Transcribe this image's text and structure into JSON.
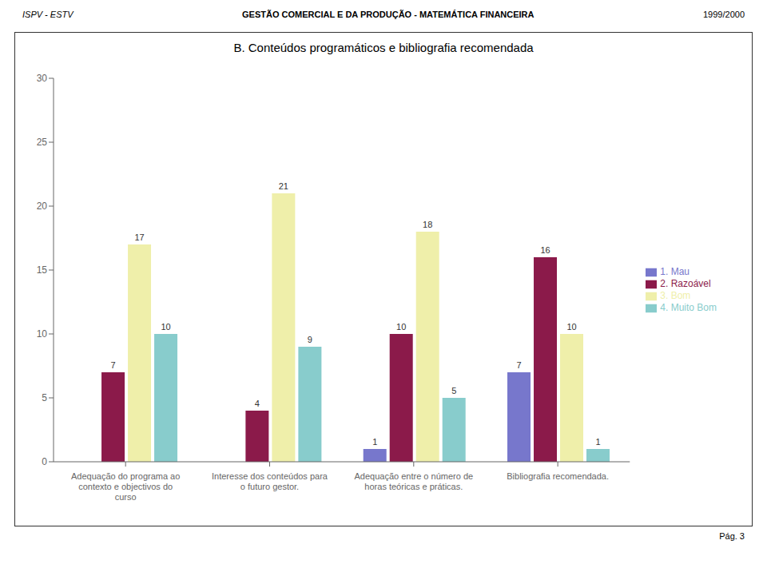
{
  "chart_data": {
    "type": "bar",
    "title": "B. Conteúdos programáticos e bibliografia recomendada",
    "annotations": [
      "ISPV - ESTV",
      "GESTÃO COMERCIAL E DA PRODUÇÃO - MATEMÁTICA FINANCEIRA",
      "1999/2000",
      "Pág. 3"
    ],
    "categories": [
      "Adequação do programa ao contexto e objectivos do curso",
      "Interesse dos conteúdos para o futuro gestor.",
      "Adequação entre o número de horas teóricas e práticas.",
      "Bibliografia recomendada."
    ],
    "series": [
      {
        "name": "1. Mau",
        "color": "#7777cc",
        "values": [
          0,
          0,
          1,
          7
        ]
      },
      {
        "name": "2. Razoável",
        "color": "#8b1a4a",
        "values": [
          7,
          4,
          10,
          16
        ]
      },
      {
        "name": "3. Bom",
        "color": "#efefaa",
        "values": [
          17,
          21,
          18,
          10
        ]
      },
      {
        "name": "4. Muito Bom",
        "color": "#88cccc",
        "values": [
          10,
          9,
          5,
          1
        ]
      }
    ],
    "ylim": [
      0,
      30
    ],
    "yticks": [
      0,
      5,
      10,
      15,
      20,
      25,
      30
    ],
    "grid": false,
    "legend": "right",
    "data_labels": true
  }
}
